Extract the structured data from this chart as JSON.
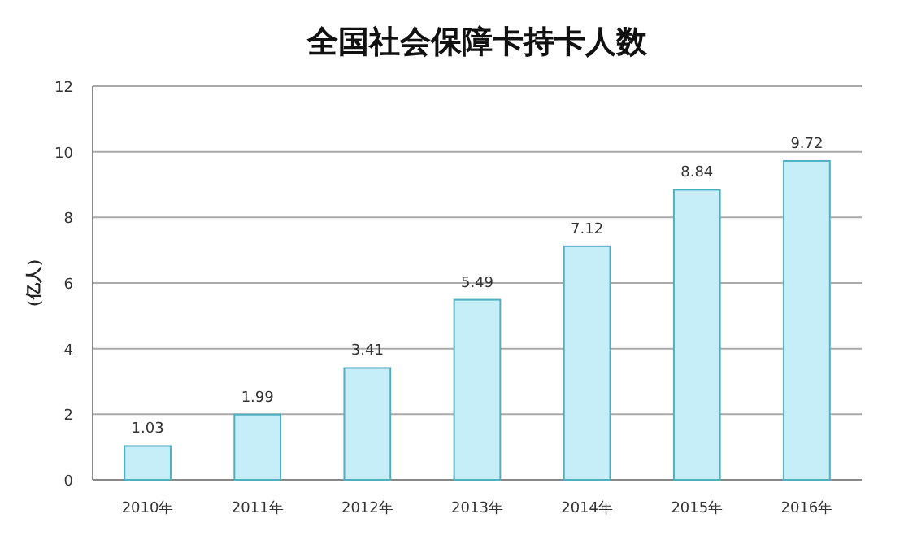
{
  "chart_data": {
    "type": "bar",
    "title": "全国社会保障卡持卡人数",
    "ylabel": "（亿人）",
    "categories": [
      "2010年",
      "2011年",
      "2012年",
      "2013年",
      "2014年",
      "2015年",
      "2016年"
    ],
    "values": [
      1.03,
      1.99,
      3.41,
      5.49,
      7.12,
      8.84,
      9.72
    ],
    "color": "#c6eef9",
    "ylim": [
      0,
      12
    ],
    "yticks": [
      0,
      2,
      4,
      6,
      8,
      10,
      12
    ],
    "grid": "y",
    "data_labels": true
  }
}
